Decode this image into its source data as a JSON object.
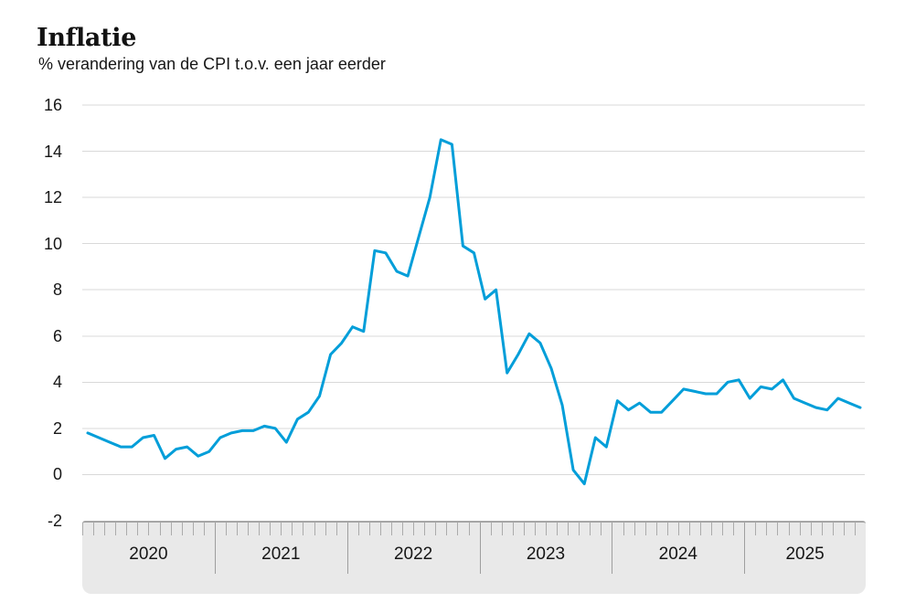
{
  "header": {
    "title": "Inflatie",
    "subtitle": "% verandering van de CPI t.o.v. een jaar eerder"
  },
  "chart_data": {
    "type": "line",
    "title": "Inflatie",
    "subtitle": "% verandering van de CPI t.o.v. een jaar eerder",
    "unit": "%",
    "frequency": "monthly",
    "start_month": "2020-01",
    "end_month": "2025-11",
    "ylim": [
      -2,
      16
    ],
    "yticks": [
      16,
      14,
      12,
      10,
      8,
      6,
      4,
      2,
      0,
      -2
    ],
    "year_labels": [
      "2020",
      "2021",
      "2022",
      "2023",
      "2024",
      "2025"
    ],
    "grid": "horizontal",
    "legend": "none",
    "series": [
      {
        "values_by_year": {
          "2020": [
            1.8,
            1.6,
            1.4,
            1.2,
            1.2,
            1.6,
            1.7,
            0.7,
            1.1,
            1.2,
            0.8,
            1.0
          ],
          "2021": [
            1.6,
            1.8,
            1.9,
            1.9,
            2.1,
            2.0,
            1.4,
            2.4,
            2.7,
            3.4,
            5.2,
            5.7
          ],
          "2022": [
            6.4,
            6.2,
            9.7,
            9.6,
            8.8,
            8.6,
            10.3,
            12.0,
            14.5,
            14.3,
            9.9,
            9.6
          ],
          "2023": [
            7.6,
            8.0,
            4.4,
            5.2,
            6.1,
            5.7,
            4.6,
            3.0,
            0.2,
            -0.4,
            1.6,
            1.2
          ],
          "2024": [
            3.2,
            2.8,
            3.1,
            2.7,
            2.7,
            3.2,
            3.7,
            3.6,
            3.5,
            3.5,
            4.0,
            4.1
          ],
          "2025": [
            3.3,
            3.8,
            3.7,
            4.1,
            3.3,
            3.1,
            2.9,
            2.8,
            3.3,
            3.1,
            2.9
          ]
        }
      }
    ],
    "colors": {
      "line": "#009ed9",
      "grid": "#d9d9d9",
      "axis_band_fill": "#e9e9e9",
      "axis_band_border": "#a6a6a6",
      "month_tick": "#ababab",
      "year_separator": "#9e9e9e",
      "text": "#161616"
    }
  }
}
